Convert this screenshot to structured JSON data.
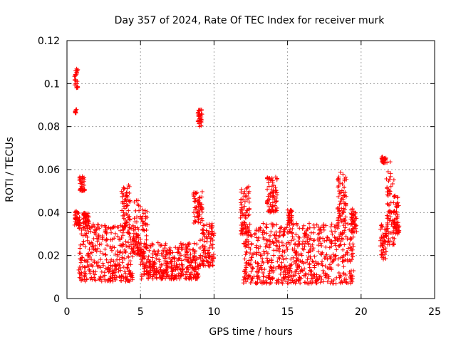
{
  "chart_data": {
    "type": "scatter",
    "title": "Day 357 of 2024, Rate Of TEC Index for receiver murk",
    "xlabel": "GPS time / hours",
    "ylabel": "ROTI / TECUs",
    "xlim": [
      0,
      25
    ],
    "ylim": [
      0,
      0.12
    ],
    "grid": true,
    "marker": "plus",
    "color": "#ff0000",
    "x_ticks": [
      "0",
      "5",
      "10",
      "15",
      "20",
      "25"
    ],
    "y_ticks": [
      "0",
      "0.02",
      "0.04",
      "0.06",
      "0.08",
      "0.1",
      "0.12"
    ],
    "clusters": [
      {
        "x": [
          0.5,
          0.75
        ],
        "y_range": [
          0.098,
          0.107
        ]
      },
      {
        "x": [
          0.55,
          0.65
        ],
        "y_range": [
          0.086,
          0.088
        ]
      },
      {
        "x": [
          0.5,
          0.9
        ],
        "y_range": [
          0.034,
          0.041
        ]
      },
      {
        "x": [
          0.85,
          1.2
        ],
        "y_range": [
          0.05,
          0.057
        ]
      },
      {
        "x": [
          1.1,
          1.5
        ],
        "y_range": [
          0.035,
          0.04
        ]
      },
      {
        "x": [
          0.8,
          4.5
        ],
        "y_range": [
          0.008,
          0.035
        ]
      },
      {
        "x": [
          3.7,
          4.3
        ],
        "y_range": [
          0.03,
          0.053
        ]
      },
      {
        "x": [
          4.5,
          5.5
        ],
        "y_range": [
          0.02,
          0.046
        ]
      },
      {
        "x": [
          5.0,
          9.0
        ],
        "y_range": [
          0.009,
          0.026
        ]
      },
      {
        "x": [
          8.6,
          9.2
        ],
        "y_range": [
          0.035,
          0.05
        ]
      },
      {
        "x": [
          8.9,
          9.2
        ],
        "y_range": [
          0.08,
          0.088
        ]
      },
      {
        "x": [
          9.0,
          10.0
        ],
        "y_range": [
          0.015,
          0.035
        ]
      },
      {
        "x": [
          11.8,
          12.4
        ],
        "y_range": [
          0.03,
          0.053
        ]
      },
      {
        "x": [
          12.0,
          19.5
        ],
        "y_range": [
          0.007,
          0.035
        ]
      },
      {
        "x": [
          13.6,
          14.3
        ],
        "y_range": [
          0.04,
          0.058
        ]
      },
      {
        "x": [
          15.0,
          15.3
        ],
        "y_range": [
          0.035,
          0.042
        ]
      },
      {
        "x": [
          18.4,
          19.0
        ],
        "y_range": [
          0.035,
          0.06
        ]
      },
      {
        "x": [
          19.3,
          19.7
        ],
        "y_range": [
          0.03,
          0.042
        ]
      },
      {
        "x": [
          21.3,
          21.7
        ],
        "y_range": [
          0.018,
          0.035
        ]
      },
      {
        "x": [
          21.4,
          21.7
        ],
        "y_range": [
          0.063,
          0.066
        ]
      },
      {
        "x": [
          21.7,
          22.3
        ],
        "y_range": [
          0.025,
          0.064
        ]
      },
      {
        "x": [
          22.2,
          22.6
        ],
        "y_range": [
          0.03,
          0.048
        ]
      }
    ]
  }
}
